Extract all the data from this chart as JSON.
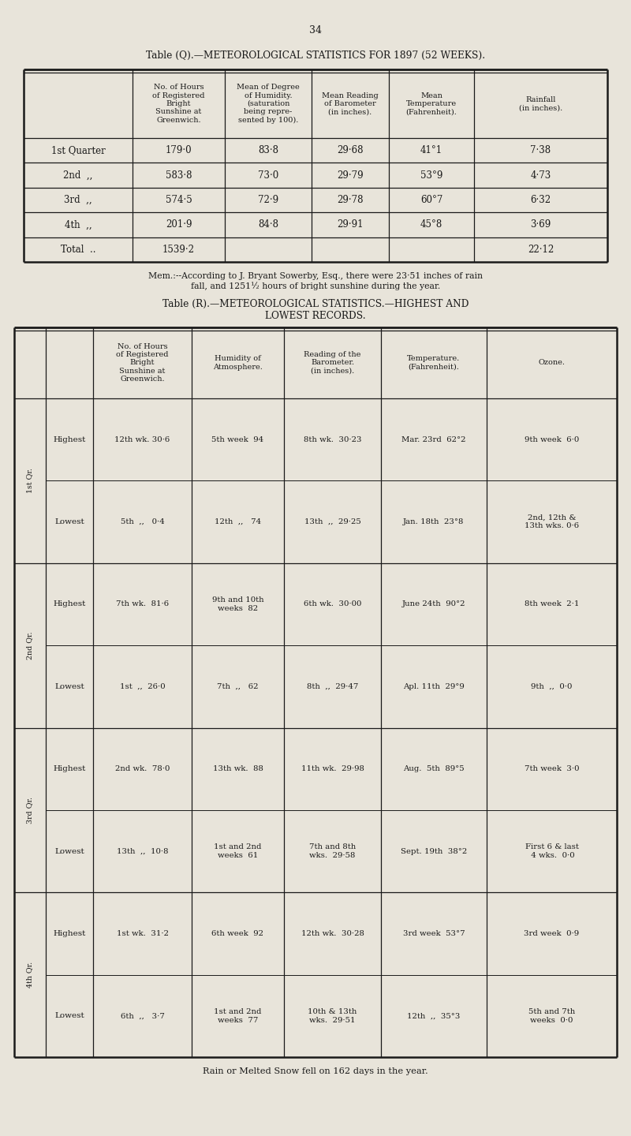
{
  "bg_color": "#e8e4da",
  "page_number": "34",
  "table_q_title": "Table (Q).—METEOROLOGICAL STATISTICS FOR 1897 (52 WEEKS).",
  "table_q_headers": [
    "",
    "No. of Hours\nof Registered\nBright\nSunshine at\nGreenwich.",
    "Mean of Degree\nof Humidity.\n(saturation\nbeing repre-\nsented by 100).",
    "Mean Reading\nof Barometer\n(in inches).",
    "Mean\nTemperature\n(Fahrenheit).",
    "Rainfall\n(in inches)."
  ],
  "table_q_rows": [
    [
      "1st Quarter",
      "179·0",
      "83·8",
      "29·68",
      "41°1",
      "7·38"
    ],
    [
      "2nd  ,,",
      "583·8",
      "73·0",
      "29·79",
      "53°9",
      "4·73"
    ],
    [
      "3rd  ,,",
      "574·5",
      "72·9",
      "29·78",
      "60°7",
      "6·32"
    ],
    [
      "4th  ,,",
      "201·9",
      "84·8",
      "29·91",
      "45°8",
      "3·69"
    ],
    [
      "Total  ..",
      "1539·2",
      "",
      "",
      "",
      "22·12"
    ]
  ],
  "table_r_title_line1": "Table (R).—METEOROLOGICAL STATISTICS.—HIGHEST AND",
  "table_r_title_line2": "LOWEST RECORDS.",
  "table_r_headers": [
    "",
    "",
    "No. of Hours\nof Registered\nBright\nSunshine at\nGreenwich.",
    "Humidity of\nAtmosphere.",
    "Reading of the\nBarometer.\n(in inches).",
    "Temperature.\n(Fahrenheit).",
    "Ozone."
  ],
  "table_r_rows": [
    [
      "1st Qr.",
      "Highest",
      "12th wk. 30·6",
      "5th week  94",
      "8th wk.  30·23",
      "Mar. 23rd  62°2",
      "9th week  6·0"
    ],
    [
      "",
      "Lowest",
      "5th  ,,   0·4",
      "12th  ,,   74",
      "13th  ,,  29·25",
      "Jan. 18th  23°8",
      "2nd, 12th &\n13th wks. 0·6"
    ],
    [
      "2nd Qr.",
      "Highest",
      "7th wk.  81·6",
      "9th and 10th\nweeks  82",
      "6th wk.  30·00",
      "June 24th  90°2",
      "8th week  2·1"
    ],
    [
      "",
      "Lowest",
      "1st  ,,  26·0",
      "7th  ,,   62",
      "8th  ,,  29·47",
      "Apl. 11th  29°9",
      "9th  ,,  0·0"
    ],
    [
      "3rd Qr.",
      "Highest",
      "2nd wk.  78·0",
      "13th wk.  88",
      "11th wk.  29·98",
      "Aug.  5th  89°5",
      "7th week  3·0"
    ],
    [
      "",
      "Lowest",
      "13th  ,,  10·8",
      "1st and 2nd\nweeks  61",
      "7th and 8th\nwks.  29·58",
      "Sept. 19th  38°2",
      "First 6 & last\n 4 wks.  0·0"
    ],
    [
      "4th Qr.",
      "Highest",
      "1st wk.  31·2",
      "6th week  92",
      "12th wk.  30·28",
      "3rd week  53°7",
      "3rd week  0·9"
    ],
    [
      "",
      "Lowest",
      "6th  ,,   3·7",
      "1st and 2nd\nweeks  77",
      "10th & 13th\nwks.  29·51",
      "12th  ,,  35°3",
      "5th and 7th\nweeks  0·0"
    ]
  ],
  "footer_text": "Rain or Melted Snow fell on 162 days in the year.",
  "mem_line1": "Mem.:--According to J. Bryant Sowerby, Esq., there were 23·51 inches of rain",
  "mem_line2": "fall, and 1251½ hours of bright sunshine during the year."
}
